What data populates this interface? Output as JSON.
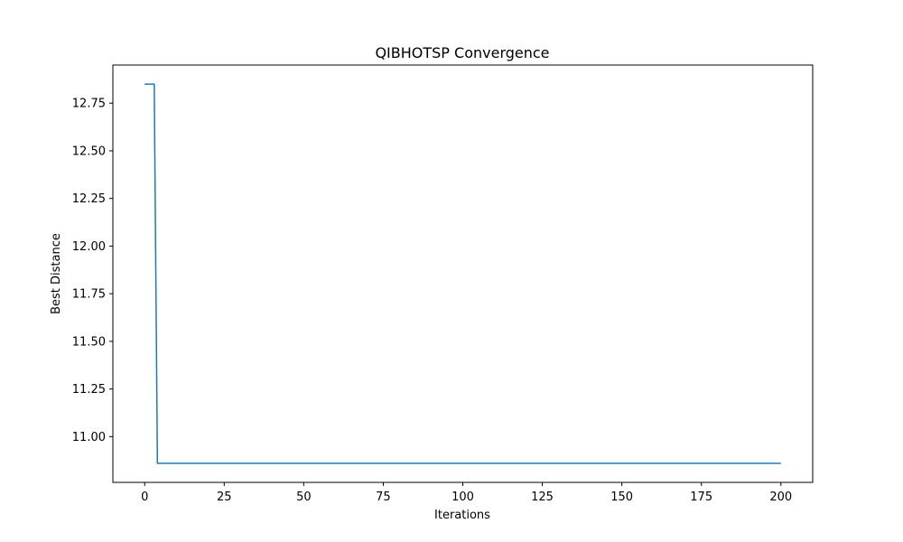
{
  "chart_data": {
    "type": "line",
    "title": "QIBHOTSP Convergence",
    "xlabel": "Iterations",
    "ylabel": "Best Distance",
    "xlim": [
      -10,
      210
    ],
    "ylim": [
      10.86,
      12.85
    ],
    "x_ticks": [
      0,
      25,
      50,
      75,
      100,
      125,
      150,
      175,
      200
    ],
    "y_ticks": [
      11.0,
      11.25,
      11.5,
      11.75,
      12.0,
      12.25,
      12.5,
      12.75
    ],
    "y_tick_labels": [
      "11.00",
      "11.25",
      "11.50",
      "11.75",
      "12.00",
      "12.25",
      "12.50",
      "12.75"
    ],
    "grid": false,
    "series": [
      {
        "color": "#1f77b4",
        "x": [
          0,
          1,
          2,
          3,
          4,
          5,
          25,
          50,
          75,
          100,
          125,
          150,
          175,
          200
        ],
        "y": [
          12.85,
          12.85,
          12.85,
          12.85,
          10.86,
          10.86,
          10.86,
          10.86,
          10.86,
          10.86,
          10.86,
          10.86,
          10.86,
          10.86
        ]
      }
    ]
  }
}
